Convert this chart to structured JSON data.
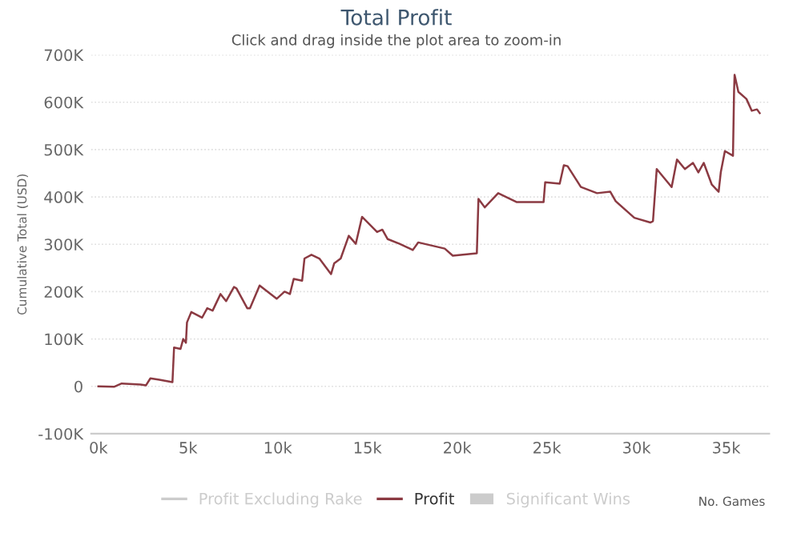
{
  "chart_data": {
    "type": "line",
    "title": "Total Profit",
    "subtitle": "Click and drag inside the plot area to zoom-in",
    "ylabel": "Cumulative Total (USD)",
    "xlabel": "No. Games",
    "xlim": [
      -400,
      37400
    ],
    "xticks": [
      {
        "value": 0,
        "label": "0k"
      },
      {
        "value": 5000,
        "label": "5k"
      },
      {
        "value": 10000,
        "label": "10k"
      },
      {
        "value": 15000,
        "label": "15k"
      },
      {
        "value": 20000,
        "label": "20k"
      },
      {
        "value": 25000,
        "label": "25k"
      },
      {
        "value": 30000,
        "label": "30k"
      },
      {
        "value": 35000,
        "label": "35k"
      }
    ],
    "ylim": [
      -100000,
      700000
    ],
    "yticks": [
      {
        "value": -100000,
        "label": "-100K"
      },
      {
        "value": 0,
        "label": "0"
      },
      {
        "value": 100000,
        "label": "100K"
      },
      {
        "value": 200000,
        "label": "200K"
      },
      {
        "value": 300000,
        "label": "300K"
      },
      {
        "value": 400000,
        "label": "400K"
      },
      {
        "value": 500000,
        "label": "500K"
      },
      {
        "value": 600000,
        "label": "600K"
      },
      {
        "value": 700000,
        "label": "700K"
      }
    ],
    "grid": "y",
    "legend": "bottom",
    "marker": "none",
    "line_style": "solid",
    "series": [
      {
        "name": "Profit Excluding Rake",
        "type": "line",
        "color": "#cccccc"
      },
      {
        "name": "Profit",
        "color": "#8b3a42",
        "x": [
          0,
          870,
          1300,
          2350,
          2650,
          2900,
          3400,
          4130,
          4220,
          4580,
          4730,
          4880,
          4940,
          5180,
          5780,
          6070,
          6370,
          6810,
          7120,
          7560,
          7700,
          8300,
          8450,
          8990,
          9940,
          10380,
          10680,
          10890,
          11360,
          11490,
          11880,
          12320,
          12970,
          13150,
          13510,
          13960,
          14350,
          14700,
          15540,
          15830,
          16130,
          16790,
          17530,
          17830,
          19310,
          19760,
          21100,
          21190,
          21540,
          22290,
          23330,
          24080,
          24820,
          24910,
          25720,
          25950,
          26160,
          26900,
          27800,
          28540,
          28840,
          29880,
          30770,
          30920,
          31130,
          31960,
          32260,
          32700,
          33150,
          33450,
          33750,
          34200,
          34580,
          34700,
          34930,
          35380,
          35440,
          35470,
          35680,
          36130,
          36430,
          36720,
          36870
        ],
        "values": [
          0,
          -1000,
          6000,
          4000,
          2000,
          17000,
          14000,
          9000,
          82000,
          79000,
          100000,
          92000,
          135000,
          157000,
          145000,
          165000,
          160000,
          195000,
          180000,
          210000,
          207000,
          165000,
          165000,
          213000,
          185000,
          200000,
          195000,
          227000,
          223000,
          270000,
          278000,
          270000,
          237000,
          260000,
          270000,
          318000,
          301000,
          358000,
          326000,
          331000,
          311000,
          301000,
          288000,
          304000,
          291000,
          276000,
          281000,
          396000,
          378000,
          408000,
          389000,
          389000,
          389000,
          431000,
          428000,
          467000,
          465000,
          421000,
          408000,
          411000,
          391000,
          356000,
          346000,
          349000,
          459000,
          421000,
          479000,
          459000,
          472000,
          452000,
          472000,
          426000,
          411000,
          452000,
          497000,
          487000,
          622000,
          658000,
          622000,
          607000,
          582000,
          585000,
          577000
        ]
      },
      {
        "name": "Significant Wins",
        "type": "area",
        "color": "#cccccc"
      }
    ]
  }
}
